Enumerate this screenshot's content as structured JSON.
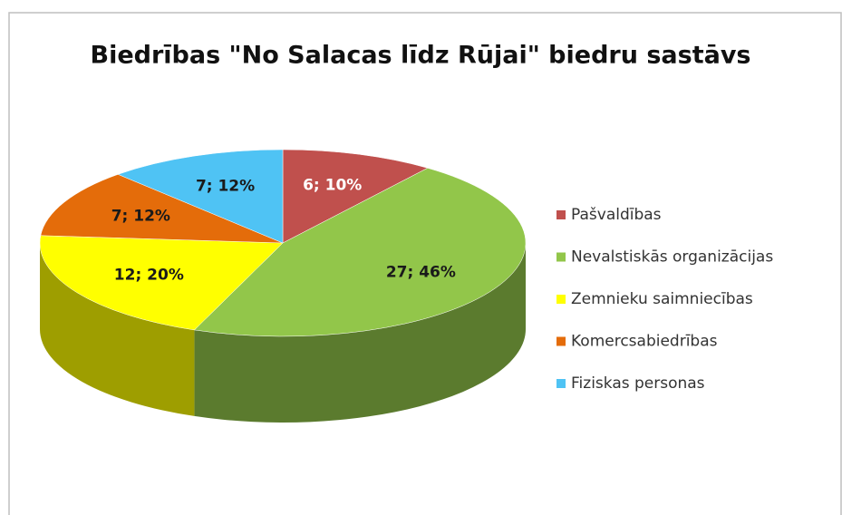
{
  "chart_data": {
    "type": "pie3d",
    "title": "Biedrības \"No Salacas līdz Rūjai\" biedru sastāvs",
    "categories": [
      "Pašvaldības",
      "Nevalstiskās organizācijas",
      "Zemnieku saimniecības",
      "Komercsabiedrības",
      "Fiziskas personas"
    ],
    "values": [
      6,
      27,
      12,
      7,
      7
    ],
    "value_labels": [
      "6; 10%",
      "27; 46%",
      "12; 20%",
      "7; 12%",
      "7; 12%"
    ],
    "colors": [
      "#c0504d",
      "#92c64a",
      "#ffff00",
      "#e46c0a",
      "#4fc3f4"
    ],
    "label_colors": [
      "#ffffff",
      "#1a1a1a",
      "#1a1a1a",
      "#1a1a1a",
      "#1a1a1a"
    ],
    "legend": "right"
  }
}
